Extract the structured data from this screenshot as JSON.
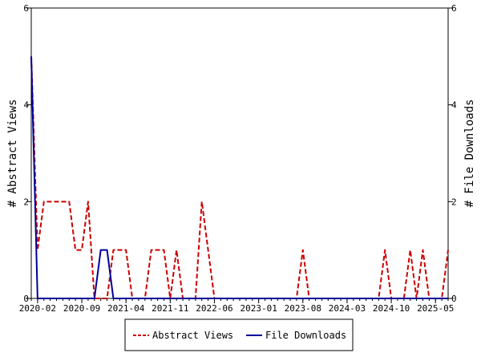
{
  "chart_data": {
    "type": "line",
    "x_tick_labels": [
      "2020-02",
      "2020-09",
      "2021-04",
      "2021-11",
      "2022-06",
      "2023-01",
      "2023-08",
      "2024-03",
      "2024-10",
      "2025-05"
    ],
    "y_left_label": "# Abstract Views",
    "y_right_label": "# File Downloads",
    "y_left_ticks": [
      "0",
      "2",
      "4",
      "6"
    ],
    "y_right_ticks": [
      "0",
      "2",
      "4",
      "6"
    ],
    "ylim": [
      0,
      6
    ],
    "legend_placement": "bottom",
    "x": [
      "2020-01",
      "2020-02",
      "2020-03",
      "2020-04",
      "2020-05",
      "2020-06",
      "2020-07",
      "2020-08",
      "2020-09",
      "2020-10",
      "2020-11",
      "2020-12",
      "2021-01",
      "2021-02",
      "2021-03",
      "2021-04",
      "2021-05",
      "2021-06",
      "2021-07",
      "2021-08",
      "2021-09",
      "2021-10",
      "2021-11",
      "2021-12",
      "2022-01",
      "2022-02",
      "2022-03",
      "2022-04",
      "2022-05",
      "2022-06",
      "2022-07",
      "2022-08",
      "2022-09",
      "2022-10",
      "2022-11",
      "2022-12",
      "2023-01",
      "2023-02",
      "2023-03",
      "2023-04",
      "2023-05",
      "2023-06",
      "2023-07",
      "2023-08",
      "2023-09",
      "2023-10",
      "2023-11",
      "2023-12",
      "2024-01",
      "2024-02",
      "2024-03",
      "2024-04",
      "2024-05",
      "2024-06",
      "2024-07",
      "2024-08",
      "2024-09",
      "2024-10",
      "2024-11",
      "2024-12",
      "2025-01",
      "2025-02",
      "2025-03",
      "2025-04",
      "2025-05",
      "2025-06",
      "2025-07"
    ],
    "series": [
      {
        "name": "Abstract Views",
        "color": "#cc0000",
        "dash": "dashed",
        "values": [
          5,
          1,
          2,
          2,
          2,
          2,
          2,
          1,
          1,
          2,
          0,
          0,
          0,
          1,
          1,
          1,
          0,
          0,
          0,
          1,
          1,
          1,
          0,
          1,
          0,
          0,
          0,
          2,
          1,
          0,
          0,
          0,
          0,
          0,
          0,
          0,
          0,
          0,
          0,
          0,
          0,
          0,
          0,
          1,
          0,
          0,
          0,
          0,
          0,
          0,
          0,
          0,
          0,
          0,
          0,
          0,
          1,
          0,
          0,
          0,
          1,
          0,
          1,
          0,
          0,
          0,
          1
        ]
      },
      {
        "name": "File Downloads",
        "color": "#000099",
        "dash": "solid",
        "values": [
          5,
          0,
          0,
          0,
          0,
          0,
          0,
          0,
          0,
          0,
          0,
          1,
          1,
          0,
          0,
          0,
          0,
          0,
          0,
          0,
          0,
          0,
          0,
          0,
          0,
          0,
          0,
          0,
          0,
          0,
          0,
          0,
          0,
          0,
          0,
          0,
          0,
          0,
          0,
          0,
          0,
          0,
          0,
          0,
          0,
          0,
          0,
          0,
          0,
          0,
          0,
          0,
          0,
          0,
          0,
          0,
          0,
          0,
          0,
          0,
          0,
          0,
          0,
          0,
          0,
          0,
          0
        ]
      }
    ]
  }
}
